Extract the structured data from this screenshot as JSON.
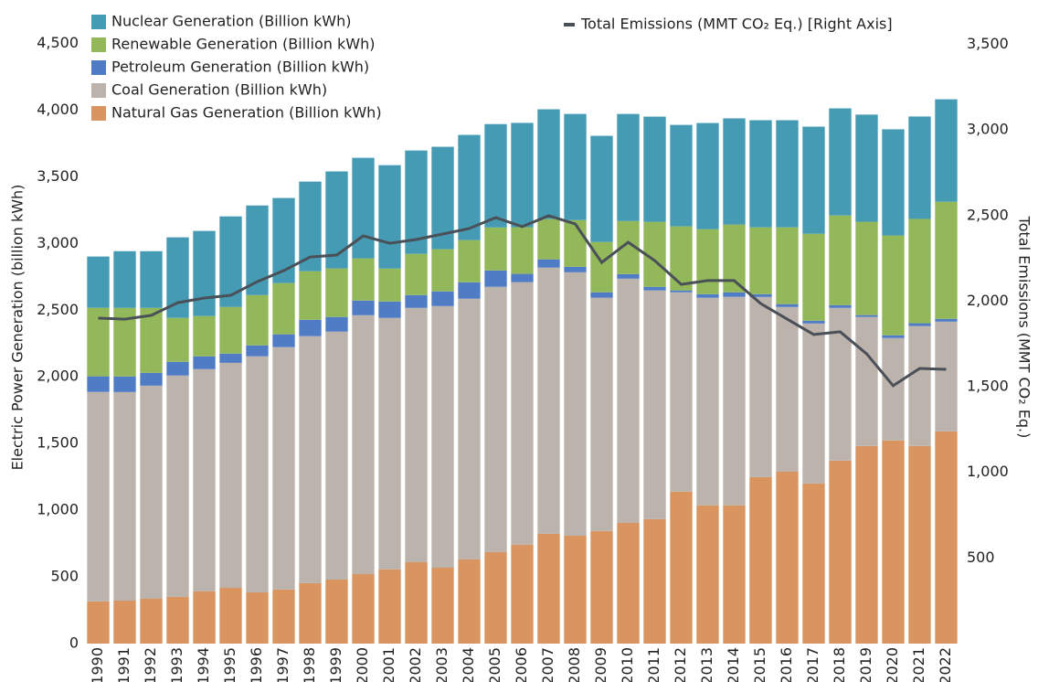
{
  "chart_data": {
    "type": "stacked-bar-line",
    "y_label": "Electric Power Generation (billion kWh)",
    "y2_label": "Total Emissions (MMT CO₂ Eq.)",
    "categories": [
      "1990",
      "1991",
      "1992",
      "1993",
      "1994",
      "1995",
      "1996",
      "1997",
      "1998",
      "1999",
      "2000",
      "2001",
      "2002",
      "2003",
      "2004",
      "2005",
      "2006",
      "2007",
      "2008",
      "2009",
      "2010",
      "2011",
      "2012",
      "2013",
      "2014",
      "2015",
      "2016",
      "2017",
      "2018",
      "2019",
      "2020",
      "2021",
      "2022"
    ],
    "series": [
      {
        "name": "Natural Gas Generation (Billion kWh)",
        "color": "#d9945f",
        "values": [
          316,
          322,
          336,
          350,
          391,
          418,
          384,
          405,
          453,
          480,
          521,
          556,
          610,
          569,
          631,
          686,
          741,
          823,
          809,
          844,
          905,
          933,
          1139,
          1036,
          1036,
          1248,
          1289,
          1200,
          1372,
          1482,
          1523,
          1482,
          1591
        ]
      },
      {
        "name": "Coal Generation (Billion kWh)",
        "color": "#bdb3ad",
        "values": [
          1571,
          1564,
          1598,
          1660,
          1667,
          1687,
          1770,
          1818,
          1852,
          1859,
          1941,
          1886,
          1907,
          1962,
          1955,
          1989,
          1969,
          1996,
          1975,
          1749,
          1831,
          1715,
          1495,
          1557,
          1564,
          1351,
          1235,
          1200,
          1145,
          967,
          768,
          899,
          823
        ]
      },
      {
        "name": "Petroleum Generation (Billion kWh)",
        "color": "#4f7cc4",
        "values": [
          117,
          117,
          96,
          103,
          96,
          69,
          82,
          96,
          123,
          110,
          110,
          123,
          96,
          110,
          123,
          123,
          62,
          62,
          41,
          41,
          34,
          27,
          14,
          27,
          34,
          21,
          21,
          21,
          21,
          14,
          21,
          21,
          21
        ]
      },
      {
        "name": "Renewable Generation (Billion kWh)",
        "color": "#92b85a",
        "values": [
          514,
          514,
          487,
          329,
          302,
          350,
          377,
          384,
          364,
          364,
          316,
          247,
          309,
          316,
          316,
          322,
          350,
          302,
          350,
          377,
          398,
          487,
          480,
          487,
          508,
          501,
          576,
          652,
          672,
          700,
          748,
          782,
          878
        ]
      },
      {
        "name": "Nuclear Generation (Billion kWh)",
        "color": "#459bb3",
        "values": [
          384,
          425,
          425,
          604,
          638,
          679,
          672,
          638,
          672,
          727,
          754,
          775,
          775,
          768,
          789,
          775,
          782,
          823,
          796,
          796,
          803,
          789,
          761,
          796,
          796,
          803,
          803,
          803,
          803,
          803,
          796,
          768,
          768
        ]
      },
      {
        "name": "Total Emissions (MMT CO₂ Eq.) [Right Axis]",
        "color": "#4a5058",
        "axis": "y2",
        "values": [
          1901,
          1895,
          1917,
          1991,
          2018,
          2034,
          2114,
          2178,
          2258,
          2269,
          2381,
          2338,
          2360,
          2392,
          2424,
          2488,
          2435,
          2499,
          2451,
          2226,
          2344,
          2237,
          2098,
          2120,
          2120,
          1986,
          1895,
          1805,
          1821,
          1692,
          1506,
          1607,
          1602
        ]
      }
    ],
    "ylim": [
      0,
      4750
    ],
    "yticks": [
      0,
      500,
      {
        "value": 1000,
        "label": "1,000"
      },
      {
        "value": 1500,
        "label": "1,500"
      },
      {
        "value": 2000,
        "label": "2,000"
      },
      {
        "value": 2500,
        "label": "2,500"
      },
      {
        "value": 3000,
        "label": "3,000"
      },
      {
        "value": 3500,
        "label": "3,500"
      },
      {
        "value": 4000,
        "label": "4,000"
      },
      {
        "value": 4500,
        "label": "4,500"
      }
    ],
    "y2lim": [
      0,
      3700
    ],
    "y2ticks": [
      500,
      {
        "value": 1000,
        "label": "1,000"
      },
      {
        "value": 1500,
        "label": "1,500"
      },
      {
        "value": 2000,
        "label": "2,000"
      },
      {
        "value": 2500,
        "label": "2,500"
      },
      {
        "value": 3000,
        "label": "3,000"
      },
      {
        "value": 3500,
        "label": "3,500"
      }
    ],
    "grid": false
  }
}
